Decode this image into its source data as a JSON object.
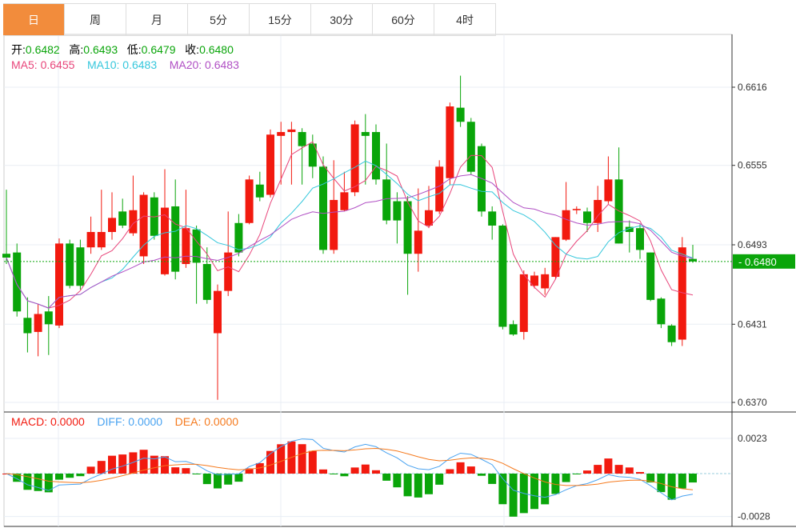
{
  "tabs": [
    "日",
    "周",
    "月",
    "5分",
    "15分",
    "30分",
    "60分",
    "4时"
  ],
  "active_tab": 0,
  "ohlc": {
    "open_label": "开:",
    "open": "0.6482",
    "high_label": "高:",
    "high": "0.6493",
    "low_label": "低:",
    "low": "0.6479",
    "close_label": "收:",
    "close": "0.6480"
  },
  "ma": {
    "ma5": "MA5: 0.6455",
    "ma10": "MA10: 0.6483",
    "ma20": "MA20: 0.6483"
  },
  "macd": {
    "macd": "MACD: 0.0000",
    "diff": "DIFF: 0.0000",
    "dea": "DEA: 0.0000"
  },
  "colors": {
    "up": "#f21a0f",
    "down": "#0aa50a",
    "ma5": "#e8457a",
    "ma10": "#35c7dc",
    "ma20": "#b04fc4",
    "diff": "#4aa3f0",
    "dea": "#f57a1e",
    "tab_active": "#f28c3c"
  },
  "chart_data": {
    "type": "candlestick",
    "price_unit": 0.0001,
    "y_ticks": [
      "0.6616",
      "0.6555",
      "0.6493",
      "0.6431",
      "0.6370"
    ],
    "ylim": [
      0.637,
      0.6616
    ],
    "last_price_label": "0.6480",
    "macd_ticks": [
      "0.0023",
      "-0.0028"
    ],
    "candles": [
      [
        6486,
        6536,
        6478,
        6483
      ],
      [
        6487,
        6494,
        6437,
        6441
      ],
      [
        6436,
        6452,
        6409,
        6424
      ],
      [
        6425,
        6447,
        6406,
        6439
      ],
      [
        6441,
        6453,
        6407,
        6431
      ],
      [
        6430,
        6498,
        6428,
        6494
      ],
      [
        6494,
        6497,
        6459,
        6461
      ],
      [
        6491,
        6497,
        6458,
        6461
      ],
      [
        6491,
        6515,
        6486,
        6503
      ],
      [
        6491,
        6536,
        6489,
        6503
      ],
      [
        6503,
        6534,
        6497,
        6514
      ],
      [
        6519,
        6529,
        6506,
        6508
      ],
      [
        6502,
        6547,
        6500,
        6520
      ],
      [
        6484,
        6534,
        6478,
        6532
      ],
      [
        6530,
        6534,
        6497,
        6500
      ],
      [
        6470,
        6552,
        6469,
        6522
      ],
      [
        6523,
        6544,
        6466,
        6472
      ],
      [
        6478,
        6536,
        6475,
        6506
      ],
      [
        6505,
        6508,
        6447,
        6479
      ],
      [
        6478,
        6491,
        6447,
        6450
      ],
      [
        6424,
        6462,
        6372,
        6457
      ],
      [
        6457,
        6519,
        6453,
        6487
      ],
      [
        6510,
        6517,
        6484,
        6487
      ],
      [
        6510,
        6547,
        6509,
        6544
      ],
      [
        6540,
        6550,
        6527,
        6530
      ],
      [
        6532,
        6583,
        6530,
        6579
      ],
      [
        6578,
        6589,
        6540,
        6581
      ],
      [
        6581,
        6589,
        6540,
        6583
      ],
      [
        6581,
        6584,
        6540,
        6570
      ],
      [
        6572,
        6579,
        6545,
        6554
      ],
      [
        6554,
        6562,
        6486,
        6489
      ],
      [
        6489,
        6559,
        6486,
        6528
      ],
      [
        6520,
        6550,
        6519,
        6534
      ],
      [
        6534,
        6590,
        6531,
        6587
      ],
      [
        6581,
        6595,
        6540,
        6578
      ],
      [
        6581,
        6587,
        6540,
        6544
      ],
      [
        6544,
        6572,
        6509,
        6512
      ],
      [
        6527,
        6534,
        6494,
        6512
      ],
      [
        6527,
        6531,
        6454,
        6486
      ],
      [
        6486,
        6537,
        6472,
        6504
      ],
      [
        6508,
        6539,
        6506,
        6520
      ],
      [
        6519,
        6559,
        6517,
        6554
      ],
      [
        6545,
        6604,
        6540,
        6601
      ],
      [
        6600,
        6625,
        6585,
        6589
      ],
      [
        6589,
        6592,
        6548,
        6550
      ],
      [
        6570,
        6572,
        6515,
        6519
      ],
      [
        6519,
        6523,
        6497,
        6508
      ],
      [
        6508,
        6509,
        6427,
        6429
      ],
      [
        6431,
        6434,
        6422,
        6423
      ],
      [
        6425,
        6473,
        6419,
        6470
      ],
      [
        6461,
        6472,
        6459,
        6469
      ],
      [
        6459,
        6475,
        6454,
        6470
      ],
      [
        6468,
        6499,
        6466,
        6499
      ],
      [
        6497,
        6542,
        6496,
        6520
      ],
      [
        6520,
        6523,
        6517,
        6521
      ],
      [
        6519,
        6522,
        6503,
        6510
      ],
      [
        6510,
        6539,
        6503,
        6528
      ],
      [
        6527,
        6562,
        6525,
        6544
      ],
      [
        6544,
        6569,
        6494,
        6494
      ],
      [
        6507,
        6512,
        6487,
        6503
      ],
      [
        6506,
        6509,
        6482,
        6489
      ],
      [
        6487,
        6487,
        6449,
        6450
      ],
      [
        6451,
        6452,
        6428,
        6431
      ],
      [
        6430,
        6431,
        6414,
        6417
      ],
      [
        6419,
        6499,
        6414,
        6491
      ],
      [
        6482,
        6493,
        6479,
        6480
      ]
    ]
  }
}
